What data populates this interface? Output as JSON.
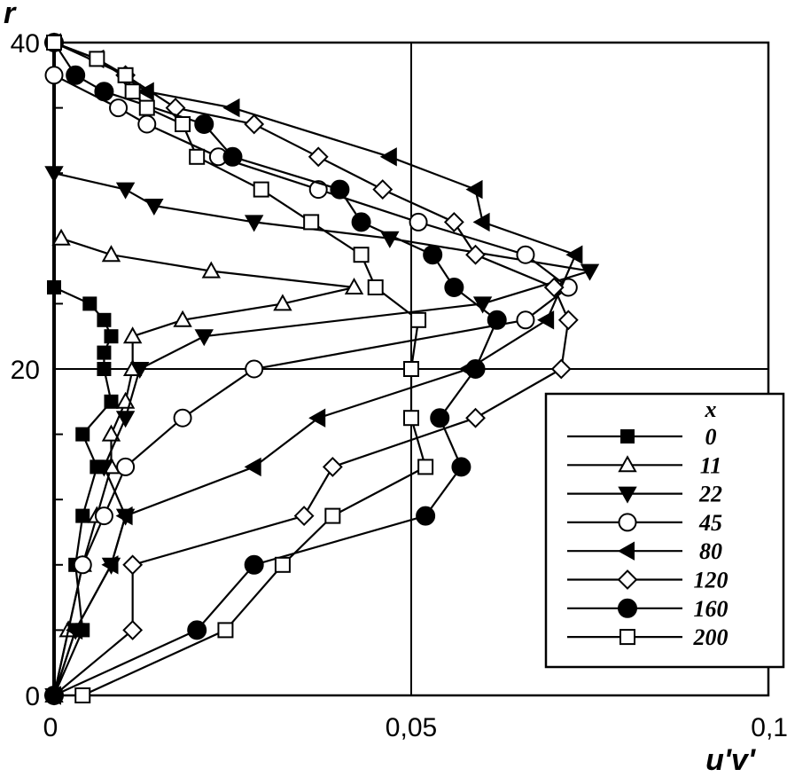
{
  "chart_data": {
    "type": "line",
    "title": "",
    "xlabel": "u'v'",
    "ylabel": "r",
    "xlim": [
      0,
      0.1
    ],
    "ylim": [
      0,
      40
    ],
    "xticks": [
      {
        "value": 0,
        "label": "0"
      },
      {
        "value": 0.05,
        "label": "0,05"
      },
      {
        "value": 0.1,
        "label": "0,1"
      }
    ],
    "yticks": [
      {
        "value": 0,
        "label": "0"
      },
      {
        "value": 20,
        "label": "20"
      },
      {
        "value": 40,
        "label": "40"
      }
    ],
    "grid": true,
    "legend": {
      "title": "x",
      "position": "bottom-right"
    },
    "series": [
      {
        "name": "0",
        "marker": "filled-square",
        "points": [
          [
            0,
            0
          ],
          [
            0.004,
            4
          ],
          [
            0.003,
            8
          ],
          [
            0.004,
            11
          ],
          [
            0.006,
            14
          ],
          [
            0.004,
            16
          ],
          [
            0.008,
            18
          ],
          [
            0.007,
            20
          ],
          [
            0.007,
            21
          ],
          [
            0.008,
            22
          ],
          [
            0.007,
            23
          ],
          [
            0.005,
            24
          ],
          [
            0,
            25
          ]
        ]
      },
      {
        "name": "11",
        "marker": "open-triangle-up",
        "points": [
          [
            0,
            0
          ],
          [
            0.002,
            4
          ],
          [
            0.004,
            8
          ],
          [
            0.006,
            11
          ],
          [
            0.008,
            14
          ],
          [
            0.008,
            16
          ],
          [
            0.01,
            18
          ],
          [
            0.011,
            20
          ],
          [
            0.011,
            22
          ],
          [
            0.018,
            23
          ],
          [
            0.032,
            24
          ],
          [
            0.042,
            25
          ],
          [
            0.022,
            26
          ],
          [
            0.008,
            27
          ],
          [
            0.001,
            28
          ]
        ]
      },
      {
        "name": "22",
        "marker": "filled-triangle-down",
        "points": [
          [
            0,
            0
          ],
          [
            0.003,
            4
          ],
          [
            0.008,
            8
          ],
          [
            0.01,
            11
          ],
          [
            0.007,
            14
          ],
          [
            0.01,
            17
          ],
          [
            0.012,
            20
          ],
          [
            0.021,
            22
          ],
          [
            0.06,
            24
          ],
          [
            0.075,
            26
          ],
          [
            0.047,
            28
          ],
          [
            0.028,
            29
          ],
          [
            0.014,
            30
          ],
          [
            0.01,
            31
          ],
          [
            0,
            32
          ]
        ]
      },
      {
        "name": "45",
        "marker": "open-circle",
        "points": [
          [
            0,
            0
          ],
          [
            0.004,
            8
          ],
          [
            0.007,
            11
          ],
          [
            0.01,
            14
          ],
          [
            0.018,
            17
          ],
          [
            0.028,
            20
          ],
          [
            0.066,
            23
          ],
          [
            0.072,
            25
          ],
          [
            0.066,
            27
          ],
          [
            0.051,
            29
          ],
          [
            0.037,
            31
          ],
          [
            0.023,
            33
          ],
          [
            0.013,
            35
          ],
          [
            0.009,
            36
          ],
          [
            0,
            38
          ],
          [
            0,
            40
          ]
        ]
      },
      {
        "name": "80",
        "marker": "filled-triangle-left",
        "points": [
          [
            0,
            0
          ],
          [
            0.003,
            4
          ],
          [
            0.008,
            8
          ],
          [
            0.01,
            11
          ],
          [
            0.028,
            14
          ],
          [
            0.037,
            17
          ],
          [
            0.058,
            20
          ],
          [
            0.069,
            23
          ],
          [
            0.073,
            27
          ],
          [
            0.06,
            29
          ],
          [
            0.059,
            31
          ],
          [
            0.047,
            33
          ],
          [
            0.025,
            36
          ],
          [
            0.013,
            37
          ],
          [
            0.006,
            39
          ],
          [
            0,
            40
          ]
        ]
      },
      {
        "name": "120",
        "marker": "open-diamond",
        "points": [
          [
            0,
            0
          ],
          [
            0.011,
            4
          ],
          [
            0.011,
            8
          ],
          [
            0.035,
            11
          ],
          [
            0.039,
            14
          ],
          [
            0.059,
            17
          ],
          [
            0.071,
            20
          ],
          [
            0.072,
            23
          ],
          [
            0.07,
            25
          ],
          [
            0.059,
            27
          ],
          [
            0.056,
            29
          ],
          [
            0.046,
            31
          ],
          [
            0.037,
            33
          ],
          [
            0.028,
            35
          ],
          [
            0.017,
            36
          ],
          [
            0.01,
            38
          ],
          [
            0,
            40
          ]
        ]
      },
      {
        "name": "160",
        "marker": "filled-circle",
        "points": [
          [
            0,
            0
          ],
          [
            0.02,
            4
          ],
          [
            0.028,
            8
          ],
          [
            0.052,
            11
          ],
          [
            0.057,
            14
          ],
          [
            0.054,
            17
          ],
          [
            0.059,
            20
          ],
          [
            0.062,
            23
          ],
          [
            0.056,
            25
          ],
          [
            0.053,
            27
          ],
          [
            0.043,
            29
          ],
          [
            0.04,
            31
          ],
          [
            0.025,
            33
          ],
          [
            0.021,
            35
          ],
          [
            0.007,
            37
          ],
          [
            0.003,
            38
          ],
          [
            0,
            40
          ]
        ]
      },
      {
        "name": "200",
        "marker": "open-square",
        "points": [
          [
            0.004,
            0
          ],
          [
            0.024,
            4
          ],
          [
            0.032,
            8
          ],
          [
            0.039,
            11
          ],
          [
            0.052,
            14
          ],
          [
            0.05,
            17
          ],
          [
            0.05,
            20
          ],
          [
            0.051,
            23
          ],
          [
            0.045,
            25
          ],
          [
            0.043,
            27
          ],
          [
            0.036,
            29
          ],
          [
            0.029,
            31
          ],
          [
            0.02,
            33
          ],
          [
            0.018,
            35
          ],
          [
            0.013,
            36
          ],
          [
            0.011,
            37
          ],
          [
            0.01,
            38
          ],
          [
            0.006,
            39
          ],
          [
            0,
            40
          ]
        ]
      }
    ]
  }
}
